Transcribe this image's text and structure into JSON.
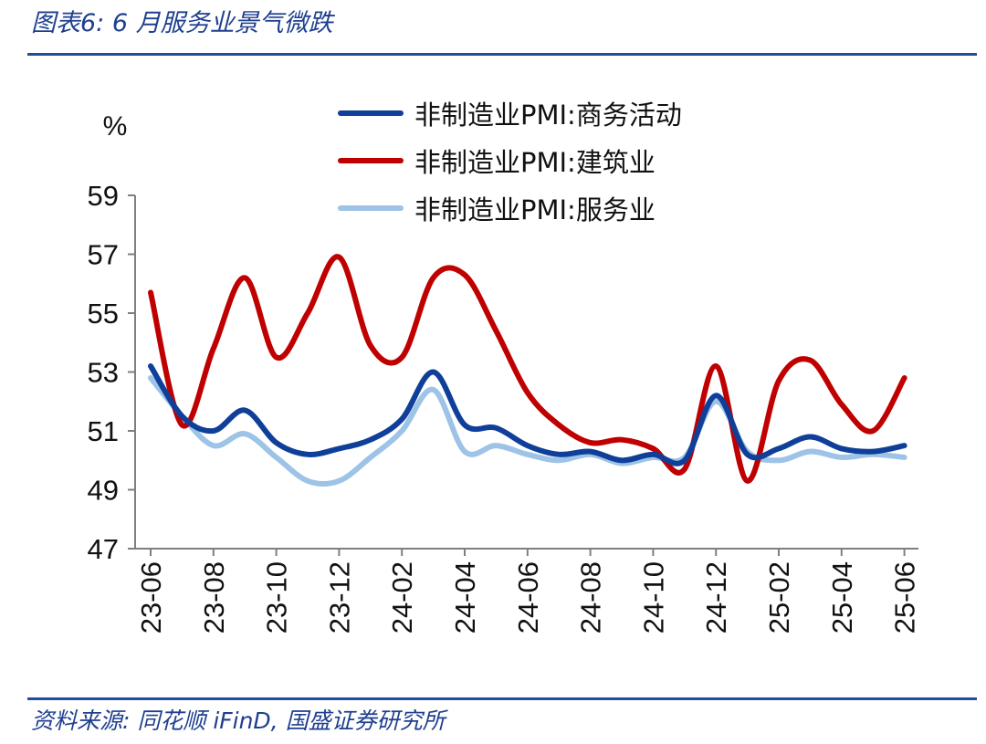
{
  "figure": {
    "title": "图表6:  6 月服务业景气微跌",
    "source": "资料来源:  同花顺 iFinD,  国盛证券研究所"
  },
  "colors": {
    "rule": "#1f4ea0",
    "title_text": "#1f3f8f",
    "series": [
      "#0f3f99",
      "#c00000",
      "#9dc3e6"
    ]
  },
  "chart_data": {
    "type": "line",
    "ylabel": "%",
    "ylim": [
      47,
      59
    ],
    "yticks": [
      47,
      49,
      51,
      53,
      55,
      57,
      59
    ],
    "grid": false,
    "legend_position": "top",
    "x": [
      "23-06",
      "23-07",
      "23-08",
      "23-09",
      "23-10",
      "23-11",
      "23-12",
      "24-01",
      "24-02",
      "24-03",
      "24-04",
      "24-05",
      "24-06",
      "24-07",
      "24-08",
      "24-09",
      "24-10",
      "24-11",
      "24-12",
      "25-01",
      "25-02",
      "25-03",
      "25-04",
      "25-05",
      "25-06"
    ],
    "xtick_labels": [
      "23-06",
      "23-08",
      "23-10",
      "23-12",
      "24-02",
      "24-04",
      "24-06",
      "24-08",
      "24-10",
      "24-12",
      "25-02",
      "25-04",
      "25-06"
    ],
    "series": [
      {
        "name": "非制造业PMI:商务活动",
        "color": "#0f3f99",
        "values": [
          53.2,
          51.5,
          51.0,
          51.7,
          50.6,
          50.2,
          50.4,
          50.7,
          51.4,
          53.0,
          51.2,
          51.1,
          50.5,
          50.2,
          50.3,
          50.0,
          50.2,
          50.0,
          52.2,
          50.2,
          50.4,
          50.8,
          50.4,
          50.3,
          50.5
        ]
      },
      {
        "name": "非制造业PMI:建筑业",
        "color": "#c00000",
        "values": [
          55.7,
          51.2,
          53.8,
          56.2,
          53.5,
          55.0,
          56.9,
          53.9,
          53.5,
          56.2,
          56.3,
          54.4,
          52.3,
          51.2,
          50.6,
          50.7,
          50.4,
          49.7,
          53.2,
          49.3,
          52.7,
          53.4,
          51.9,
          51.0,
          52.8
        ]
      },
      {
        "name": "非制造业PMI:服务业",
        "color": "#9dc3e6",
        "values": [
          52.8,
          51.5,
          50.5,
          50.9,
          50.1,
          49.3,
          49.3,
          50.1,
          51.0,
          52.4,
          50.3,
          50.5,
          50.2,
          50.0,
          50.2,
          49.9,
          50.1,
          50.1,
          52.0,
          50.3,
          50.0,
          50.3,
          50.1,
          50.2,
          50.1
        ]
      }
    ]
  }
}
